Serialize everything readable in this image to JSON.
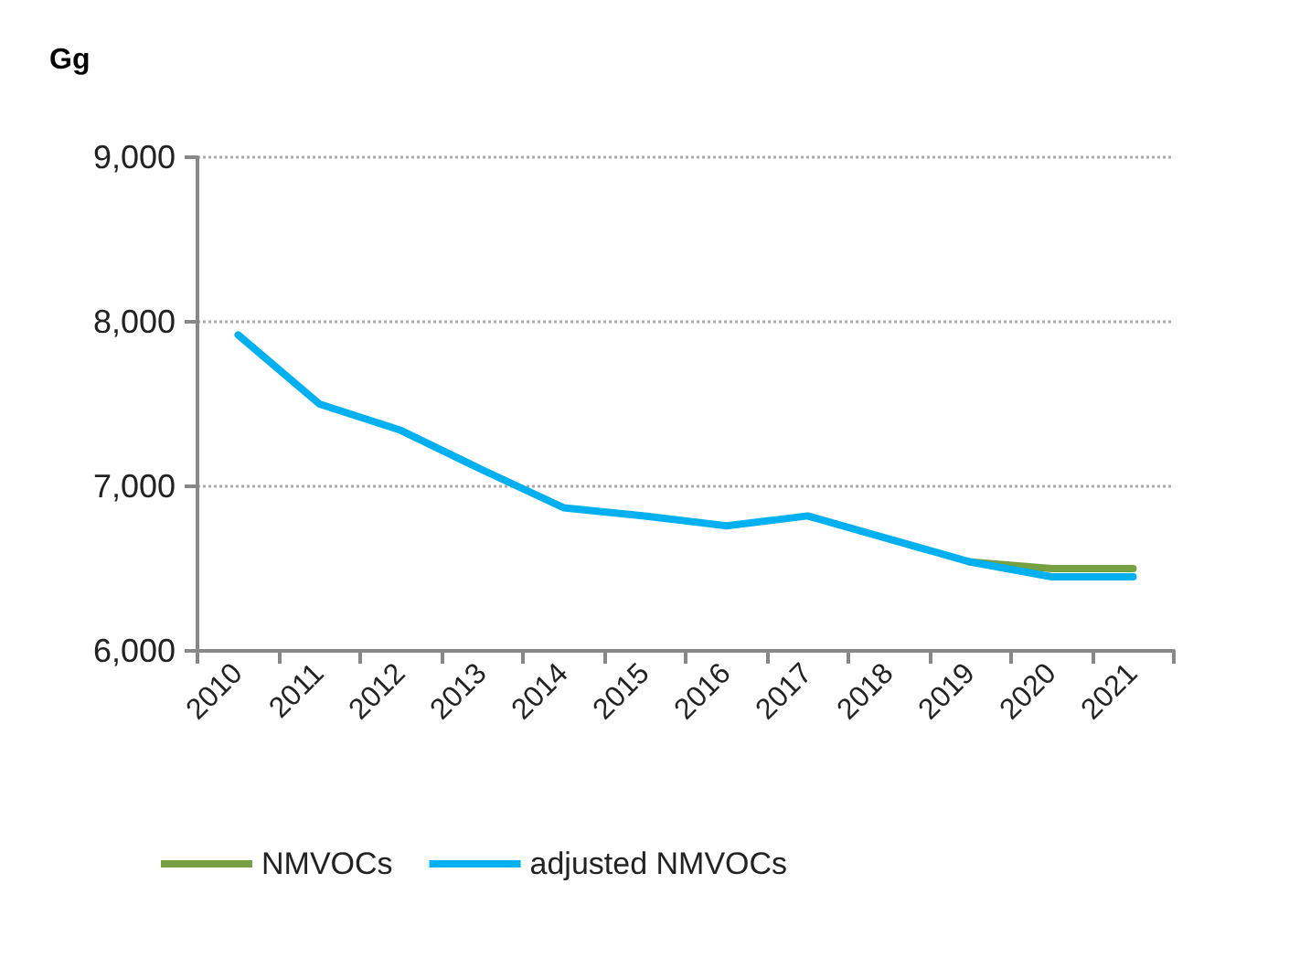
{
  "chart_data": {
    "type": "line",
    "title": "Gg",
    "categories": [
      "2010",
      "2011",
      "2012",
      "2013",
      "2014",
      "2015",
      "2016",
      "2017",
      "2018",
      "2019",
      "2020",
      "2021"
    ],
    "series": [
      {
        "name": "NMVOCs",
        "color": "#77a043",
        "values": [
          null,
          null,
          null,
          null,
          null,
          null,
          null,
          null,
          null,
          6540,
          6500,
          6500
        ]
      },
      {
        "name": "adjusted NMVOCs",
        "color": "#00b0f0",
        "values": [
          7920,
          7500,
          7340,
          7100,
          6870,
          6820,
          6760,
          6820,
          6680,
          6540,
          6450,
          6450
        ]
      }
    ],
    "ylim": [
      6000,
      9000
    ],
    "yticks": [
      {
        "value": 6000,
        "label": "6,000"
      },
      {
        "value": 7000,
        "label": "7,000"
      },
      {
        "value": 8000,
        "label": "8,000"
      },
      {
        "value": 9000,
        "label": "9,000"
      }
    ],
    "grid": "y",
    "legend": "bottom left",
    "marker": "none",
    "line_style": "solid"
  }
}
